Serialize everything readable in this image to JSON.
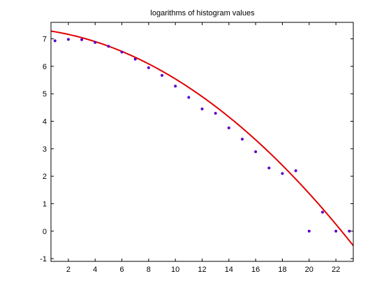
{
  "chart_data": {
    "type": "scatter",
    "title": "logarithms of histogram values",
    "xlabel": "",
    "ylabel": "",
    "xlim": [
      0.7,
      23.3
    ],
    "ylim": [
      -1.1,
      7.6
    ],
    "xticks": [
      "2",
      "4",
      "6",
      "8",
      "10",
      "12",
      "14",
      "16",
      "18",
      "20",
      "22"
    ],
    "yticks": [
      "-1",
      "0",
      "1",
      "2",
      "3",
      "4",
      "5",
      "6",
      "7"
    ],
    "grid": false,
    "series": [
      {
        "kind": "points",
        "color": "#5a00c8",
        "x": [
          1,
          2,
          3,
          4,
          5,
          6,
          7,
          8,
          9,
          10,
          11,
          12,
          13,
          14,
          15,
          16,
          17,
          18,
          19,
          20,
          21,
          22,
          23
        ],
        "y": [
          6.93,
          6.98,
          6.97,
          6.87,
          6.73,
          6.52,
          6.26,
          5.95,
          5.67,
          5.28,
          4.87,
          4.45,
          4.29,
          3.76,
          3.35,
          2.89,
          2.3,
          2.1,
          2.2,
          0.0,
          0.69,
          0.0,
          0.0
        ]
      },
      {
        "kind": "fit-curve",
        "color": "#e00000",
        "coefficients": [
          7.33,
          -0.06,
          -0.0119
        ]
      }
    ]
  }
}
